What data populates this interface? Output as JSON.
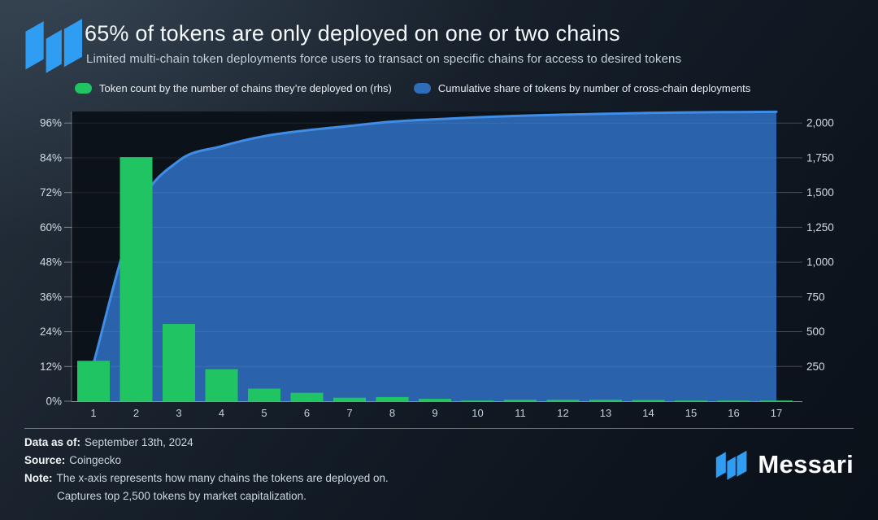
{
  "brand": {
    "name": "Messari",
    "color": "#2f9df1"
  },
  "header": {
    "title": "65% of tokens are only deployed on one or two chains",
    "subtitle": "Limited multi-chain token deployments force users to transact on specific chains for access to desired tokens"
  },
  "legend": [
    {
      "label": "Token count by the number of chains they’re deployed on (rhs)",
      "color": "#21c463"
    },
    {
      "label": "Cumulative share of tokens by number of cross-chain deployments",
      "color": "#2e6db8"
    }
  ],
  "chart_data": {
    "type": "combo: bar + cumulative area line",
    "x": [
      1,
      2,
      3,
      4,
      5,
      6,
      7,
      8,
      9,
      10,
      11,
      12,
      13,
      14,
      15,
      16,
      17
    ],
    "x_tick_labels": [
      "1",
      "2",
      "3",
      "4",
      "5",
      "6",
      "7",
      "8",
      "9",
      "10",
      "11",
      "12",
      "13",
      "14",
      "15",
      "16",
      "17"
    ],
    "series": [
      {
        "name": "Token count by the number of chains they're deployed on (rhs)",
        "type": "bar",
        "axis": "right",
        "color": "#21c463",
        "values": [
          290,
          1755,
          555,
          230,
          90,
          60,
          25,
          30,
          17,
          3,
          10,
          10,
          10,
          8,
          2,
          2,
          2
        ]
      },
      {
        "name": "Cumulative share of tokens by number of cross-chain deployments",
        "type": "area",
        "axis": "left",
        "fill_color": "#2a63ab",
        "line_color": "#3f8de6",
        "values_pct": [
          13,
          65,
          83,
          88,
          91.5,
          93.5,
          95,
          96.5,
          97.3,
          98,
          98.5,
          98.9,
          99.2,
          99.5,
          99.7,
          99.8,
          99.9
        ]
      }
    ],
    "left_axis": {
      "unit": "%",
      "ticks_pct": [
        0,
        12,
        24,
        36,
        48,
        60,
        72,
        84,
        96
      ],
      "tick_labels": [
        "0%",
        "12%",
        "24%",
        "36%",
        "48%",
        "60%",
        "72%",
        "84%",
        "96%"
      ],
      "max_pct": 100
    },
    "right_axis": {
      "ticks": [
        250,
        500,
        750,
        1000,
        1250,
        1500,
        1750,
        2000
      ],
      "tick_labels": [
        "250",
        "500",
        "750",
        "1,000",
        "1,250",
        "1,500",
        "1,750",
        "2,000"
      ],
      "max": 2083
    },
    "grid": true,
    "legend_position": "top"
  },
  "footer": {
    "data_as_of_label": "Data as of:",
    "data_as_of_value": "September 13th, 2024",
    "source_label": "Source:",
    "source_value": "Coingecko",
    "note_label": "Note:",
    "note_line1": "The x-axis represents how many chains the tokens are deployed on.",
    "note_line2": "Captures top 2,500 tokens by market capitalization."
  }
}
